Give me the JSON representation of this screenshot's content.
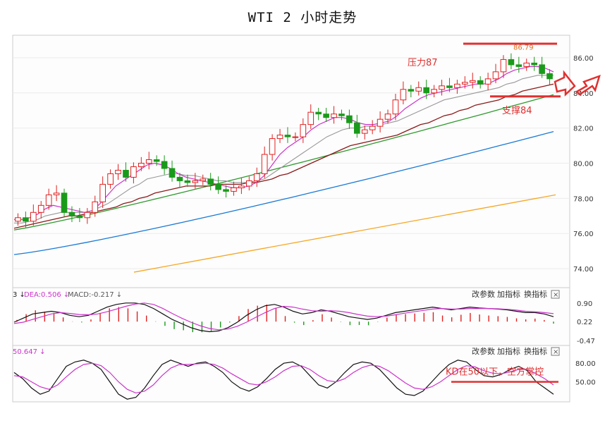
{
  "title": "WTI 2 小时走势",
  "chart_data": [
    {
      "type": "candlestick",
      "ylim": [
        73,
        87.2
      ],
      "yticks": [
        "86.00",
        "84.00",
        "82.00",
        "80.00",
        "78.00",
        "76.00",
        "74.00"
      ],
      "ytick_values": [
        86,
        84,
        82,
        80,
        78,
        76,
        74
      ],
      "high_label": "86.79",
      "annotations": {
        "resistance": {
          "label": "压力87",
          "value": 86.8
        },
        "support": {
          "label": "支撑84",
          "value": 83.8
        }
      },
      "close": [
        76.9,
        76.7,
        77.2,
        77.6,
        78.2,
        78.3,
        77.2,
        77.0,
        76.9,
        77.2,
        77.8,
        78.8,
        79.4,
        79.6,
        79.2,
        79.8,
        80.0,
        80.2,
        80.1,
        79.7,
        79.2,
        79.0,
        78.9,
        79.0,
        79.1,
        78.8,
        78.5,
        78.4,
        78.6,
        78.7,
        79.0,
        79.4,
        80.5,
        81.4,
        81.6,
        81.5,
        81.5,
        82.2,
        82.9,
        82.8,
        82.6,
        82.8,
        82.7,
        82.3,
        81.7,
        81.9,
        82.1,
        82.5,
        82.8,
        83.6,
        84.2,
        84.1,
        84.3,
        84.0,
        84.2,
        84.4,
        84.3,
        84.5,
        84.6,
        84.7,
        84.5,
        84.8,
        85.2,
        85.9,
        85.6,
        85.5,
        85.7,
        85.6,
        85.1,
        84.8
      ],
      "ma_short": [
        76.8,
        76.8,
        76.9,
        77.1,
        77.4,
        77.6,
        77.5,
        77.4,
        77.3,
        77.2,
        77.3,
        77.7,
        78.2,
        78.7,
        79.0,
        79.3,
        79.6,
        79.9,
        80.0,
        79.9,
        79.7,
        79.4,
        79.2,
        79.1,
        79.0,
        78.9,
        78.8,
        78.7,
        78.6,
        78.6,
        78.7,
        78.9,
        79.3,
        79.9,
        80.5,
        80.9,
        81.2,
        81.5,
        81.9,
        82.2,
        82.4,
        82.6,
        82.6,
        82.5,
        82.3,
        82.2,
        82.2,
        82.3,
        82.4,
        82.7,
        83.1,
        83.4,
        83.7,
        83.9,
        84.0,
        84.1,
        84.2,
        84.3,
        84.4,
        84.5,
        84.5,
        84.6,
        84.8,
        85.1,
        85.3,
        85.4,
        85.5,
        85.5,
        85.4,
        85.2
      ],
      "ma_mid": [
        76.6,
        76.6,
        76.7,
        76.8,
        77.0,
        77.1,
        77.2,
        77.2,
        77.2,
        77.2,
        77.3,
        77.5,
        77.7,
        78.0,
        78.3,
        78.6,
        78.8,
        79.1,
        79.2,
        79.3,
        79.4,
        79.4,
        79.3,
        79.3,
        79.2,
        79.1,
        79.0,
        79.0,
        78.9,
        78.9,
        78.9,
        79.0,
        79.1,
        79.4,
        79.7,
        80.0,
        80.3,
        80.6,
        80.9,
        81.2,
        81.5,
        81.7,
        81.9,
        82.0,
        82.0,
        82.1,
        82.1,
        82.2,
        82.3,
        82.4,
        82.6,
        82.8,
        83.0,
        83.2,
        83.4,
        83.6,
        83.7,
        83.8,
        83.9,
        84.0,
        84.1,
        84.2,
        84.3,
        84.5,
        84.6,
        84.8,
        84.9,
        85.0,
        85.0,
        85.0
      ],
      "ma_long": [
        76.3,
        76.4,
        76.5,
        76.6,
        76.7,
        76.8,
        76.9,
        77.0,
        77.0,
        77.1,
        77.2,
        77.3,
        77.4,
        77.5,
        77.7,
        77.8,
        78.0,
        78.1,
        78.3,
        78.4,
        78.5,
        78.6,
        78.7,
        78.7,
        78.7,
        78.7,
        78.8,
        78.8,
        78.8,
        78.8,
        78.9,
        78.9,
        79.0,
        79.1,
        79.3,
        79.4,
        79.6,
        79.8,
        80.0,
        80.2,
        80.4,
        80.6,
        80.8,
        81.0,
        81.1,
        81.2,
        81.3,
        81.4,
        81.5,
        81.6,
        81.8,
        82.0,
        82.2,
        82.3,
        82.5,
        82.7,
        82.8,
        83.0,
        83.1,
        83.3,
        83.4,
        83.5,
        83.6,
        83.8,
        83.9,
        84.1,
        84.2,
        84.3,
        84.4,
        84.5
      ],
      "ma_60_start": [
        76.2,
        83.9
      ],
      "ma_120_start": [
        74.8,
        81.8
      ],
      "ma_250_start": [
        73.8,
        78.2
      ]
    },
    {
      "type": "line",
      "indicator": "MACD",
      "header": [
        "3 ↓",
        "DEA:0.506 ↓",
        "MACD:-0.217 ↓"
      ],
      "yticks": [
        "0.90",
        "0.22",
        "-0.47"
      ],
      "ytick_values": [
        0.9,
        0.22,
        -0.47
      ],
      "ylim": [
        -0.6,
        1.05
      ],
      "dif": [
        0.2,
        0.35,
        0.5,
        0.55,
        0.6,
        0.55,
        0.45,
        0.4,
        0.45,
        0.6,
        0.75,
        0.85,
        0.9,
        0.9,
        0.85,
        0.7,
        0.5,
        0.3,
        0.15,
        0.0,
        -0.1,
        -0.15,
        -0.12,
        0.0,
        0.2,
        0.45,
        0.65,
        0.8,
        0.85,
        0.75,
        0.6,
        0.5,
        0.55,
        0.65,
        0.6,
        0.5,
        0.4,
        0.35,
        0.3,
        0.35,
        0.45,
        0.55,
        0.6,
        0.65,
        0.7,
        0.75,
        0.7,
        0.65,
        0.7,
        0.75,
        0.72,
        0.7,
        0.68,
        0.65,
        0.6,
        0.55,
        0.55,
        0.5,
        0.4
      ],
      "dea": [
        0.15,
        0.2,
        0.3,
        0.4,
        0.5,
        0.55,
        0.52,
        0.48,
        0.47,
        0.5,
        0.58,
        0.68,
        0.78,
        0.86,
        0.9,
        0.85,
        0.7,
        0.52,
        0.35,
        0.2,
        0.07,
        -0.03,
        -0.08,
        -0.05,
        0.05,
        0.2,
        0.38,
        0.55,
        0.7,
        0.78,
        0.75,
        0.68,
        0.62,
        0.6,
        0.62,
        0.6,
        0.55,
        0.48,
        0.42,
        0.4,
        0.42,
        0.47,
        0.53,
        0.58,
        0.63,
        0.68,
        0.7,
        0.68,
        0.68,
        0.7,
        0.7,
        0.7,
        0.69,
        0.67,
        0.64,
        0.6,
        0.58,
        0.55,
        0.51
      ],
      "header_buttons": [
        "改参数",
        "加指标",
        "换指标"
      ]
    },
    {
      "type": "line",
      "indicator": "KDJ",
      "header": [
        "50.647 ↓"
      ],
      "yticks": [
        "80.00",
        "50.00"
      ],
      "ytick_values": [
        80,
        50
      ],
      "ylim": [
        20,
        95
      ],
      "k": [
        65,
        55,
        40,
        30,
        35,
        55,
        75,
        82,
        85,
        80,
        70,
        50,
        30,
        22,
        25,
        40,
        60,
        78,
        85,
        80,
        75,
        80,
        82,
        75,
        65,
        50,
        40,
        35,
        42,
        55,
        70,
        80,
        82,
        75,
        60,
        45,
        40,
        50,
        65,
        78,
        82,
        80,
        70,
        55,
        40,
        30,
        28,
        35,
        50,
        65,
        78,
        85,
        82,
        70,
        60,
        58,
        62,
        70,
        75,
        68,
        50,
        40,
        30
      ],
      "d": [
        60,
        58,
        50,
        42,
        38,
        45,
        58,
        70,
        78,
        80,
        76,
        65,
        50,
        38,
        32,
        35,
        45,
        60,
        72,
        78,
        78,
        79,
        80,
        78,
        72,
        63,
        55,
        47,
        45,
        50,
        58,
        68,
        75,
        76,
        70,
        60,
        52,
        50,
        55,
        65,
        73,
        77,
        75,
        68,
        58,
        48,
        40,
        38,
        42,
        50,
        60,
        70,
        76,
        74,
        68,
        64,
        63,
        66,
        70,
        70,
        63,
        55,
        45
      ],
      "line_value": 50,
      "annotation": "KD在50以下，空方掌控",
      "header_buttons": [
        "改参数",
        "加指标",
        "换指标"
      ]
    }
  ],
  "close_label": "×"
}
